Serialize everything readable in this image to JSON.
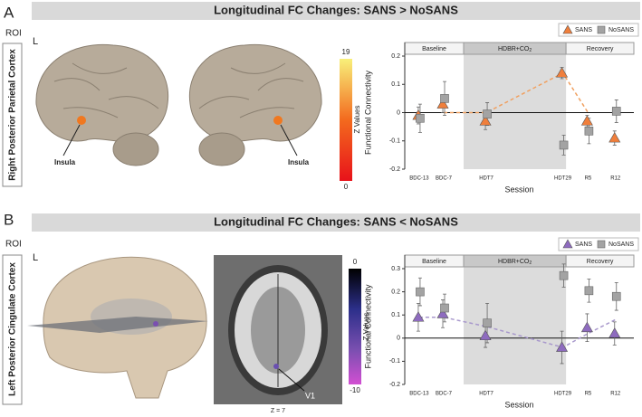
{
  "panels": [
    {
      "letter": "A",
      "roi_heading": "ROI",
      "roi": "Right Posterior Parietal Cortex",
      "hemisphere": "L",
      "annotations": [
        "Insula",
        "Insula"
      ],
      "colorbar": {
        "label": "Z Values",
        "lim": [
          0,
          19
        ],
        "ticks": [
          0,
          19
        ]
      }
    },
    {
      "letter": "B",
      "roi_heading": "ROI",
      "roi": "Left Posterior Cingulate Cortex",
      "hemisphere": "L",
      "annotations": [
        "V1"
      ],
      "slice_label": "Z = 7",
      "colorbar": {
        "label": "Z Values",
        "lim": [
          -10,
          0
        ],
        "ticks": [
          -10,
          0
        ]
      }
    }
  ],
  "chart_data": [
    {
      "type": "errorbar",
      "title": "Longitudinal FC Changes: SANS > NoSANS",
      "x_label": "Session",
      "y_label": "Functional Connectivity",
      "categories": [
        "BDC-13",
        "BDC-7",
        "HDT7",
        "HDT29",
        "R5",
        "R12"
      ],
      "phases": [
        {
          "label": "Baseline"
        },
        {
          "label": "HDBR+CO",
          "subscript": "2",
          "shaded": true
        },
        {
          "label": "Recovery"
        }
      ],
      "series": [
        {
          "name": "SANS",
          "color": "#f07f3c",
          "marker": "triangle",
          "values": [
            -0.01,
            0.03,
            -0.03,
            0.14,
            -0.03,
            -0.09
          ],
          "errors": [
            0.03,
            0.03,
            0.03,
            0.02,
            0.02,
            0.025
          ]
        },
        {
          "name": "NoSANS",
          "color": "#a3a3a3",
          "marker": "square",
          "values": [
            -0.02,
            0.05,
            -0.005,
            -0.115,
            -0.065,
            0.005
          ],
          "errors": [
            0.05,
            0.06,
            0.04,
            0.035,
            0.045,
            0.04
          ]
        }
      ],
      "trend": {
        "color": "#f0a060",
        "values": [
          null,
          0,
          0,
          0.14,
          0.0,
          null
        ]
      },
      "ylim": [
        -0.2,
        0.2
      ],
      "yticks": [
        -0.2,
        -0.1,
        0,
        0.1,
        0.2
      ]
    },
    {
      "type": "errorbar",
      "title": "Longitudinal FC Changes: SANS < NoSANS",
      "x_label": "Session",
      "y_label": "Functional Connectivity",
      "categories": [
        "BDC-13",
        "BDC-7",
        "HDT7",
        "HDT29",
        "R5",
        "R12"
      ],
      "phases": [
        {
          "label": "Baseline"
        },
        {
          "label": "HDBR+CO",
          "subscript": "2",
          "shaded": true
        },
        {
          "label": "Recovery"
        }
      ],
      "series": [
        {
          "name": "SANS",
          "color": "#8e6bbf",
          "marker": "triangle",
          "values": [
            0.09,
            0.105,
            0.01,
            -0.04,
            0.045,
            0.02
          ],
          "errors": [
            0.06,
            0.06,
            0.05,
            0.07,
            0.06,
            0.05
          ]
        },
        {
          "name": "NoSANS",
          "color": "#a3a3a3",
          "marker": "square",
          "values": [
            0.2,
            0.13,
            0.065,
            0.27,
            0.205,
            0.18
          ],
          "errors": [
            0.06,
            0.06,
            0.085,
            0.05,
            0.05,
            0.06
          ]
        }
      ],
      "trend": {
        "color": "#a898cc",
        "values": [
          0.09,
          0.09,
          0.05,
          -0.04,
          0.02,
          0.08
        ]
      },
      "ylim": [
        -0.2,
        0.3
      ],
      "yticks": [
        -0.2,
        -0.1,
        0,
        0.1,
        0.2,
        0.3
      ]
    }
  ]
}
